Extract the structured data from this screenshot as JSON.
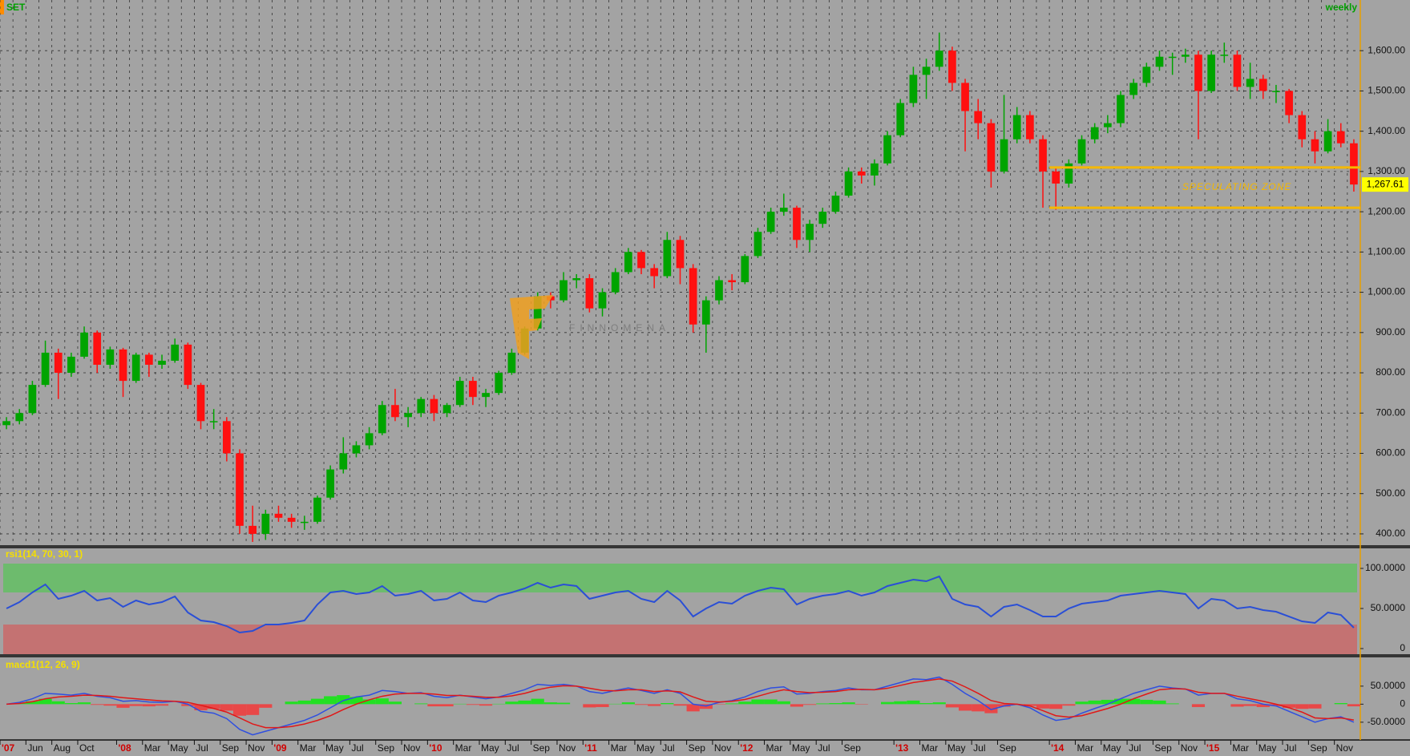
{
  "chart_data": [
    {
      "type": "candlestick",
      "title": "SET",
      "subtitle": "weekly",
      "categories": [
        "'07",
        null,
        "Jun",
        null,
        "Aug",
        null,
        "Oct",
        null,
        null,
        "'08",
        null,
        "Mar",
        null,
        "May",
        null,
        "Jul",
        null,
        "Sep",
        null,
        "Nov",
        null,
        "'09",
        null,
        "Mar",
        null,
        "May",
        null,
        "Jul",
        null,
        "Sep",
        null,
        "Nov",
        null,
        "'10",
        null,
        "Mar",
        null,
        "May",
        null,
        "Jul",
        null,
        "Sep",
        null,
        "Nov",
        null,
        "'11",
        null,
        "Mar",
        null,
        "May",
        null,
        "Jul",
        null,
        "Sep",
        null,
        "Nov",
        null,
        "'12",
        null,
        "Mar",
        null,
        "May",
        null,
        "Jul",
        null,
        "Sep",
        null,
        null,
        null,
        "'13",
        null,
        "Mar",
        null,
        "May",
        null,
        "Jul",
        null,
        "Sep",
        null,
        null,
        null,
        "'14",
        null,
        "Mar",
        null,
        "May",
        null,
        "Jul",
        null,
        "Sep",
        null,
        "Nov",
        null,
        "'15",
        null,
        "Mar",
        null,
        "May",
        null,
        "Jul",
        null,
        "Sep",
        null,
        "Nov",
        null
      ],
      "open": [
        670,
        680,
        700,
        770,
        850,
        800,
        840,
        900,
        820,
        858,
        780,
        845,
        820,
        830,
        870,
        770,
        680,
        680,
        600,
        420,
        400,
        450,
        440,
        430,
        430,
        490,
        560,
        600,
        620,
        650,
        720,
        690,
        700,
        735,
        700,
        720,
        780,
        740,
        750,
        800,
        850,
        910,
        990,
        980,
        1030,
        1035,
        960,
        1000,
        1050,
        1100,
        1060,
        1040,
        1130,
        1060,
        920,
        980,
        1030,
        1025,
        1090,
        1150,
        1200,
        1210,
        1130,
        1170,
        1200,
        1240,
        1300,
        1290,
        1320,
        1390,
        1470,
        1540,
        1560,
        1600,
        1520,
        1450,
        1420,
        1300,
        1380,
        1440,
        1380,
        1300,
        1270,
        1320,
        1380,
        1410,
        1420,
        1490,
        1520,
        1560,
        1585,
        1585,
        1590,
        1500,
        1590,
        1590,
        1510,
        1530,
        1500,
        1500,
        1440,
        1380,
        1350,
        1400,
        1370
      ],
      "high": [
        690,
        710,
        780,
        880,
        860,
        850,
        915,
        905,
        865,
        862,
        850,
        850,
        845,
        885,
        875,
        775,
        710,
        690,
        610,
        470,
        460,
        470,
        450,
        445,
        495,
        570,
        640,
        630,
        665,
        730,
        760,
        715,
        740,
        745,
        725,
        790,
        790,
        760,
        805,
        860,
        915,
        1000,
        1000,
        1050,
        1045,
        1045,
        1010,
        1060,
        1110,
        1105,
        1070,
        1150,
        1140,
        1070,
        990,
        1040,
        1045,
        1095,
        1160,
        1210,
        1245,
        1215,
        1180,
        1210,
        1250,
        1310,
        1310,
        1330,
        1400,
        1480,
        1560,
        1580,
        1645,
        1610,
        1530,
        1480,
        1430,
        1490,
        1460,
        1450,
        1390,
        1310,
        1330,
        1390,
        1420,
        1440,
        1500,
        1530,
        1570,
        1600,
        1595,
        1605,
        1600,
        1600,
        1620,
        1600,
        1570,
        1540,
        1515,
        1505,
        1450,
        1400,
        1430,
        1420,
        1380
      ],
      "low": [
        660,
        672,
        695,
        765,
        735,
        790,
        835,
        800,
        810,
        740,
        775,
        790,
        810,
        825,
        760,
        660,
        660,
        580,
        400,
        380,
        385,
        430,
        415,
        410,
        425,
        485,
        550,
        590,
        610,
        645,
        680,
        665,
        690,
        680,
        690,
        715,
        720,
        715,
        745,
        795,
        845,
        905,
        960,
        975,
        1010,
        950,
        940,
        995,
        1045,
        1045,
        1010,
        1035,
        1020,
        900,
        850,
        970,
        1005,
        1020,
        1085,
        1145,
        1190,
        1110,
        1100,
        1160,
        1195,
        1235,
        1270,
        1265,
        1315,
        1385,
        1460,
        1480,
        1550,
        1500,
        1350,
        1380,
        1260,
        1295,
        1370,
        1370,
        1210,
        1205,
        1260,
        1315,
        1370,
        1395,
        1410,
        1480,
        1510,
        1550,
        1540,
        1570,
        1380,
        1495,
        1570,
        1500,
        1480,
        1480,
        1470,
        1420,
        1360,
        1320,
        1345,
        1360,
        1250
      ],
      "close": [
        680,
        700,
        770,
        850,
        800,
        840,
        900,
        820,
        858,
        780,
        845,
        820,
        830,
        870,
        770,
        680,
        680,
        600,
        420,
        400,
        450,
        440,
        430,
        430,
        490,
        560,
        600,
        620,
        650,
        720,
        690,
        700,
        735,
        700,
        720,
        780,
        740,
        750,
        800,
        850,
        910,
        990,
        980,
        1030,
        1035,
        960,
        1000,
        1050,
        1100,
        1060,
        1040,
        1130,
        1060,
        920,
        980,
        1030,
        1025,
        1090,
        1150,
        1200,
        1210,
        1130,
        1170,
        1200,
        1240,
        1300,
        1290,
        1320,
        1390,
        1470,
        1540,
        1560,
        1600,
        1520,
        1450,
        1420,
        1300,
        1380,
        1440,
        1380,
        1300,
        1270,
        1320,
        1380,
        1410,
        1420,
        1490,
        1520,
        1560,
        1585,
        1585,
        1590,
        1500,
        1590,
        1590,
        1510,
        1530,
        1500,
        1500,
        1440,
        1380,
        1350,
        1400,
        1370,
        1267.61
      ],
      "up_color": "#00a400",
      "down_color": "#ff1010",
      "ylim": [
        370,
        1690
      ],
      "yticks": [
        {
          "value": 400,
          "label": "400.00"
        },
        {
          "value": 500,
          "label": "500.00"
        },
        {
          "value": 600,
          "label": "600.00"
        },
        {
          "value": 700,
          "label": "700.00"
        },
        {
          "value": 800,
          "label": "800.00"
        },
        {
          "value": 900,
          "label": "900.00"
        },
        {
          "value": 1000,
          "label": "1,000.00"
        },
        {
          "value": 1100,
          "label": "1,100.00"
        },
        {
          "value": 1200,
          "label": "1,200.00"
        },
        {
          "value": 1300,
          "label": "1,300.00"
        },
        {
          "value": 1400,
          "label": "1,400.00"
        },
        {
          "value": 1500,
          "label": "1,500.00"
        },
        {
          "value": 1600,
          "label": "1,600.00"
        }
      ],
      "grid": true,
      "last_price": {
        "value": 1267.61,
        "label": "1,267.61"
      },
      "zone": {
        "label": "SPECULATING ZONE",
        "upper": 1310,
        "lower": 1210,
        "color": "#f5b800"
      },
      "watermark": "FINNOMENA"
    },
    {
      "type": "line",
      "title": "rsi1(14, 70, 30, 1)",
      "color": "#2a4fd6",
      "values": [
        50,
        58,
        70,
        80,
        62,
        66,
        72,
        60,
        63,
        52,
        60,
        55,
        58,
        65,
        45,
        35,
        33,
        28,
        20,
        22,
        30,
        30,
        32,
        35,
        55,
        70,
        72,
        68,
        70,
        78,
        66,
        68,
        72,
        60,
        62,
        70,
        60,
        58,
        66,
        70,
        75,
        82,
        76,
        80,
        78,
        62,
        66,
        70,
        72,
        62,
        58,
        72,
        60,
        40,
        50,
        58,
        56,
        66,
        72,
        76,
        74,
        55,
        62,
        66,
        68,
        72,
        66,
        70,
        78,
        82,
        86,
        84,
        90,
        62,
        55,
        52,
        40,
        52,
        55,
        48,
        40,
        40,
        50,
        56,
        58,
        60,
        66,
        68,
        70,
        72,
        70,
        68,
        50,
        62,
        60,
        50,
        52,
        48,
        46,
        40,
        34,
        32,
        45,
        42,
        26
      ],
      "overbought": 70,
      "oversold": 30,
      "overbought_color": "#6dbb6d",
      "oversold_color": "#c47272",
      "ylim": [
        -7,
        106
      ],
      "yticks": [
        {
          "value": 100,
          "label": "100.0000"
        },
        {
          "value": 50,
          "label": "50.0000"
        },
        0
      ]
    },
    {
      "type": "macd",
      "title": "macd1(12, 26, 9)",
      "series": [
        {
          "color": "#2f4fe0",
          "values": [
            0,
            5,
            15,
            30,
            28,
            25,
            30,
            22,
            18,
            8,
            10,
            6,
            5,
            8,
            0,
            -20,
            -25,
            -40,
            -70,
            -85,
            -75,
            -65,
            -55,
            -45,
            -30,
            -10,
            10,
            20,
            25,
            38,
            35,
            30,
            32,
            22,
            18,
            25,
            20,
            15,
            20,
            30,
            40,
            55,
            52,
            55,
            50,
            35,
            30,
            38,
            45,
            38,
            30,
            40,
            30,
            0,
            -5,
            5,
            10,
            20,
            35,
            45,
            48,
            28,
            30,
            35,
            38,
            45,
            40,
            40,
            50,
            60,
            70,
            68,
            75,
            55,
            30,
            10,
            -15,
            -5,
            0,
            -10,
            -30,
            -45,
            -40,
            -25,
            -12,
            0,
            15,
            30,
            40,
            50,
            45,
            42,
            25,
            30,
            30,
            15,
            10,
            0,
            -5,
            -20,
            -35,
            -50,
            -40,
            -35,
            -50
          ]
        },
        {
          "color": "#e01818",
          "values": [
            0,
            2,
            7,
            15,
            20,
            22,
            25,
            24,
            22,
            18,
            15,
            12,
            9,
            8,
            5,
            -3,
            -12,
            -22,
            -38,
            -55,
            -65,
            -65,
            -62,
            -55,
            -45,
            -32,
            -15,
            0,
            12,
            22,
            28,
            30,
            30,
            28,
            24,
            24,
            22,
            19,
            19,
            23,
            30,
            40,
            47,
            51,
            50,
            44,
            38,
            37,
            40,
            40,
            35,
            37,
            34,
            20,
            8,
            6,
            8,
            13,
            22,
            32,
            40,
            35,
            32,
            33,
            35,
            40,
            41,
            40,
            44,
            52,
            60,
            65,
            70,
            64,
            48,
            30,
            10,
            2,
            0,
            -5,
            -18,
            -32,
            -36,
            -32,
            -22,
            -12,
            0,
            15,
            28,
            40,
            43,
            42,
            33,
            30,
            30,
            22,
            15,
            8,
            0,
            -10,
            -22,
            -38,
            -40,
            -38,
            -44
          ]
        }
      ],
      "histogram": [
        0,
        3,
        8,
        15,
        8,
        3,
        5,
        -2,
        -4,
        -10,
        -5,
        -6,
        -4,
        0,
        -5,
        -17,
        -13,
        -18,
        -32,
        -30,
        -10,
        0,
        7,
        10,
        15,
        22,
        25,
        20,
        13,
        16,
        7,
        0,
        2,
        -6,
        -6,
        1,
        -2,
        -4,
        1,
        7,
        10,
        15,
        5,
        4,
        0,
        -9,
        -8,
        1,
        5,
        -2,
        -5,
        3,
        -4,
        -20,
        -13,
        -1,
        2,
        7,
        13,
        13,
        8,
        -7,
        -2,
        2,
        3,
        5,
        -1,
        0,
        6,
        8,
        10,
        3,
        5,
        -9,
        -18,
        -20,
        -25,
        -7,
        0,
        -5,
        -12,
        -13,
        -4,
        7,
        10,
        12,
        15,
        15,
        12,
        10,
        2,
        0,
        -8,
        0,
        0,
        -7,
        -5,
        -8,
        -5,
        -10,
        -13,
        -12,
        0,
        3,
        -6
      ],
      "pos_color": "#22e022",
      "neg_color": "#e84848",
      "ylim": [
        -97,
        83
      ],
      "yticks": [
        {
          "value": 50,
          "label": "50.0000"
        },
        0,
        {
          "value": -50,
          "label": "-50.0000"
        }
      ]
    }
  ]
}
